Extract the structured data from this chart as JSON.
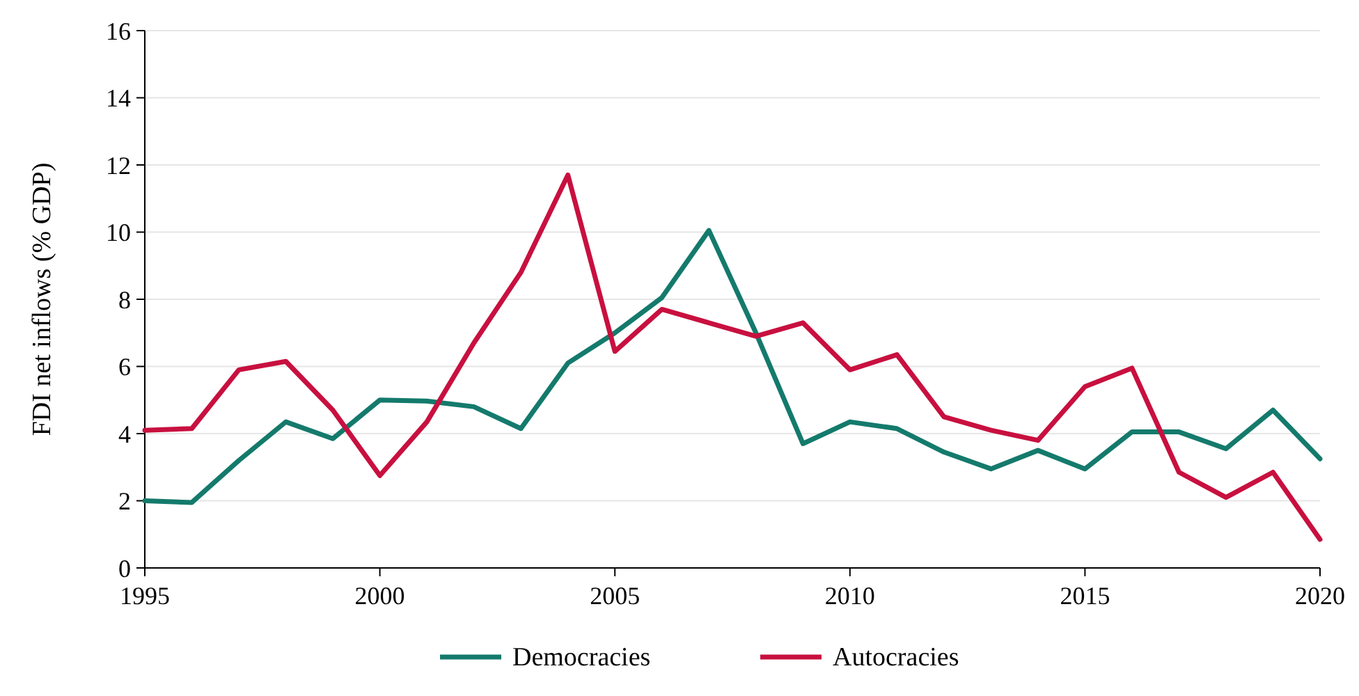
{
  "chart_data": {
    "type": "line",
    "ylabel": "FDI net inflows (% GDP)",
    "x": [
      1995,
      1996,
      1997,
      1998,
      1999,
      2000,
      2001,
      2002,
      2003,
      2004,
      2005,
      2006,
      2007,
      2008,
      2009,
      2010,
      2011,
      2012,
      2013,
      2014,
      2015,
      2016,
      2017,
      2018,
      2019,
      2020
    ],
    "series": [
      {
        "name": "Democracies",
        "color": "#147a6c",
        "values": [
          2.0,
          1.95,
          3.2,
          4.35,
          3.85,
          5.0,
          4.97,
          4.8,
          4.15,
          6.1,
          7.0,
          8.05,
          10.05,
          7.0,
          3.7,
          4.35,
          4.15,
          3.45,
          2.95,
          3.5,
          2.95,
          4.05,
          4.05,
          3.55,
          4.7,
          3.25
        ]
      },
      {
        "name": "Autocracies",
        "color": "#c8103f",
        "values": [
          4.1,
          4.15,
          5.9,
          6.15,
          4.7,
          2.75,
          4.35,
          6.7,
          8.8,
          11.7,
          6.45,
          7.7,
          7.3,
          6.9,
          7.3,
          5.9,
          6.35,
          4.5,
          4.1,
          3.8,
          5.4,
          5.95,
          2.85,
          2.1,
          2.85,
          0.85
        ]
      }
    ],
    "xlim": [
      1995,
      2020
    ],
    "xticks": [
      1995,
      2000,
      2005,
      2010,
      2015,
      2020
    ],
    "ylim": [
      0,
      16
    ],
    "yticks": [
      0,
      2,
      4,
      6,
      8,
      10,
      12,
      14,
      16
    ],
    "grid": "y",
    "legend": "bottom",
    "marker": "none",
    "line_style": "solid"
  }
}
